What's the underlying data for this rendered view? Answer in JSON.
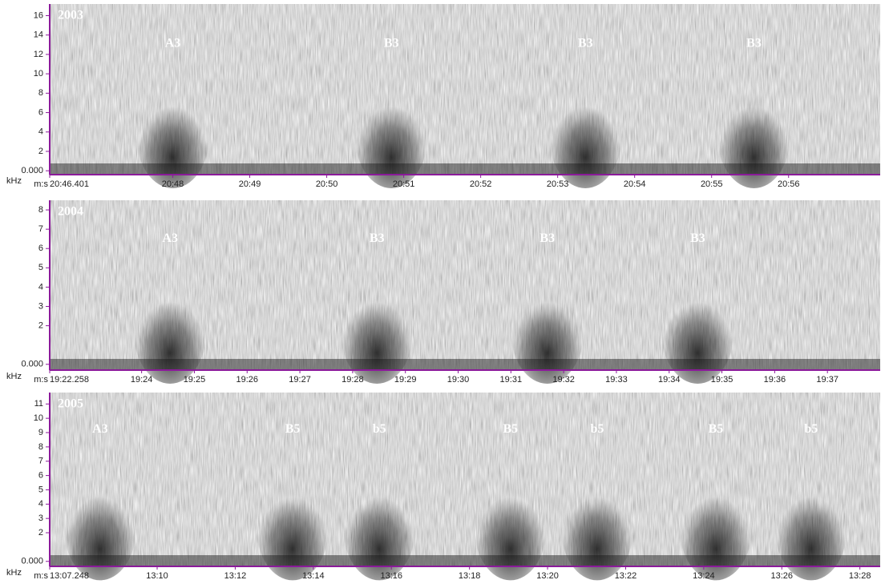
{
  "chart_data": [
    {
      "type": "spectrogram",
      "title": "2003",
      "y_label": "kHz",
      "x_label": "m:s",
      "ylim": [
        -0.4,
        17.2
      ],
      "yticks": [
        {
          "value": 0,
          "label": "0.000"
        },
        2,
        4,
        6,
        8,
        10,
        12,
        14,
        16
      ],
      "xlim": [
        1246.401,
        1257.19
      ],
      "xticks": [
        {
          "value": 1246.401,
          "label": "20:46.401"
        },
        {
          "value": 1248,
          "label": "20:48"
        },
        {
          "value": 1249,
          "label": "20:49"
        },
        {
          "value": 1250,
          "label": "20:50"
        },
        {
          "value": 1251,
          "label": "20:51"
        },
        {
          "value": 1252,
          "label": "20:52"
        },
        {
          "value": 1253,
          "label": "20:53"
        },
        {
          "value": 1254,
          "label": "20:54"
        },
        {
          "value": 1255,
          "label": "20:55"
        },
        {
          "value": 1256,
          "label": "20:56"
        }
      ],
      "annotations": [
        {
          "text": "A3",
          "x": 1248.0,
          "y": 13.1
        },
        {
          "text": "B3",
          "x": 1250.84,
          "y": 13.1
        },
        {
          "text": "B3",
          "x": 1253.36,
          "y": 13.1
        },
        {
          "text": "B3",
          "x": 1255.55,
          "y": 13.1
        }
      ]
    },
    {
      "type": "spectrogram",
      "title": "2004",
      "y_label": "kHz",
      "x_label": "m:s",
      "ylim": [
        -0.3,
        8.5
      ],
      "yticks": [
        {
          "value": 0,
          "label": "0.000"
        },
        2,
        3,
        4,
        5,
        6,
        7,
        8
      ],
      "xlim": [
        1162.258,
        1178.0
      ],
      "xticks": [
        {
          "value": 1162.258,
          "label": "19:22.258"
        },
        {
          "value": 1164,
          "label": "19:24"
        },
        {
          "value": 1165,
          "label": "19:25"
        },
        {
          "value": 1166,
          "label": "19:26"
        },
        {
          "value": 1167,
          "label": "19:27"
        },
        {
          "value": 1168,
          "label": "19:28"
        },
        {
          "value": 1169,
          "label": "19:29"
        },
        {
          "value": 1170,
          "label": "19:30"
        },
        {
          "value": 1171,
          "label": "19:31"
        },
        {
          "value": 1172,
          "label": "19:32"
        },
        {
          "value": 1173,
          "label": "19:33"
        },
        {
          "value": 1174,
          "label": "19:34"
        },
        {
          "value": 1175,
          "label": "19:35"
        },
        {
          "value": 1176,
          "label": "19:36"
        },
        {
          "value": 1177,
          "label": "19:37"
        }
      ],
      "annotations": [
        {
          "text": "A3",
          "x": 1164.54,
          "y": 6.5
        },
        {
          "text": "B3",
          "x": 1168.46,
          "y": 6.5
        },
        {
          "text": "B3",
          "x": 1171.69,
          "y": 6.5
        },
        {
          "text": "B3",
          "x": 1174.54,
          "y": 6.5
        }
      ]
    },
    {
      "type": "spectrogram",
      "title": "2005",
      "y_label": "kHz",
      "x_label": "m:s",
      "ylim": [
        -0.35,
        11.8
      ],
      "yticks": [
        {
          "value": 0,
          "label": "0.000"
        },
        2,
        3,
        4,
        5,
        6,
        7,
        8,
        9,
        10,
        11
      ],
      "xlim": [
        787.248,
        808.52
      ],
      "xticks": [
        {
          "value": 787.248,
          "label": "13:07.248"
        },
        {
          "value": 790,
          "label": "13:10"
        },
        {
          "value": 792,
          "label": "13:12"
        },
        {
          "value": 794,
          "label": "13:14"
        },
        {
          "value": 796,
          "label": "13:16"
        },
        {
          "value": 798,
          "label": "13:18"
        },
        {
          "value": 800,
          "label": "13:20"
        },
        {
          "value": 802,
          "label": "13:22"
        },
        {
          "value": 804,
          "label": "13:24"
        },
        {
          "value": 806,
          "label": "13:26"
        },
        {
          "value": 808,
          "label": "13:28"
        }
      ],
      "annotations": [
        {
          "text": "A3",
          "x": 788.54,
          "y": 9.2
        },
        {
          "text": "B5",
          "x": 793.47,
          "y": 9.2
        },
        {
          "text": "b5",
          "x": 795.69,
          "y": 9.2
        },
        {
          "text": "B5",
          "x": 799.05,
          "y": 9.2
        },
        {
          "text": "b5",
          "x": 801.27,
          "y": 9.2
        },
        {
          "text": "B5",
          "x": 804.31,
          "y": 9.2
        },
        {
          "text": "b5",
          "x": 806.75,
          "y": 9.2
        }
      ]
    }
  ]
}
